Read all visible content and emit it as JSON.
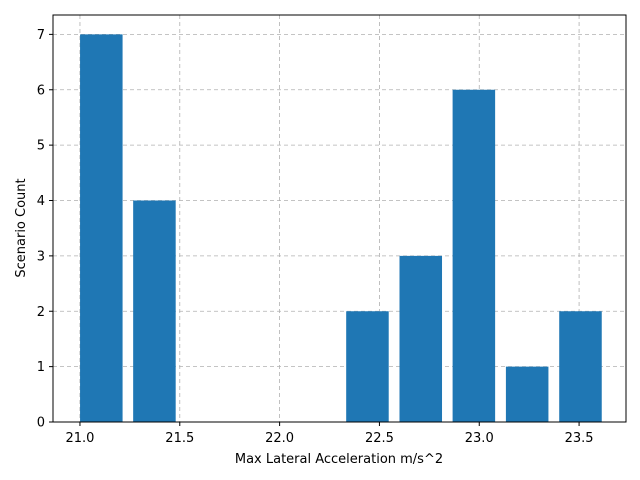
{
  "chart_data": {
    "type": "bar",
    "xlabel": "Max Lateral Acceleration m/s^2",
    "ylabel": "Scenario Count",
    "bar_color": "#1f77b4",
    "grid": true,
    "xlim": [
      20.865,
      23.735
    ],
    "ylim": [
      0,
      7.35
    ],
    "bar_width": 0.213,
    "x": [
      21.107,
      21.373,
      22.44,
      22.707,
      22.973,
      23.24,
      23.507
    ],
    "values": [
      7,
      4,
      2,
      3,
      6,
      1,
      2
    ],
    "x_ticks": [
      21.0,
      21.5,
      22.0,
      22.5,
      23.0,
      23.5
    ],
    "x_tick_labels": [
      "21.0",
      "21.5",
      "22.0",
      "22.5",
      "23.0",
      "23.5"
    ],
    "y_ticks": [
      0,
      1,
      2,
      3,
      4,
      5,
      6,
      7
    ],
    "y_tick_labels": [
      "0",
      "1",
      "2",
      "3",
      "4",
      "5",
      "6",
      "7"
    ]
  }
}
